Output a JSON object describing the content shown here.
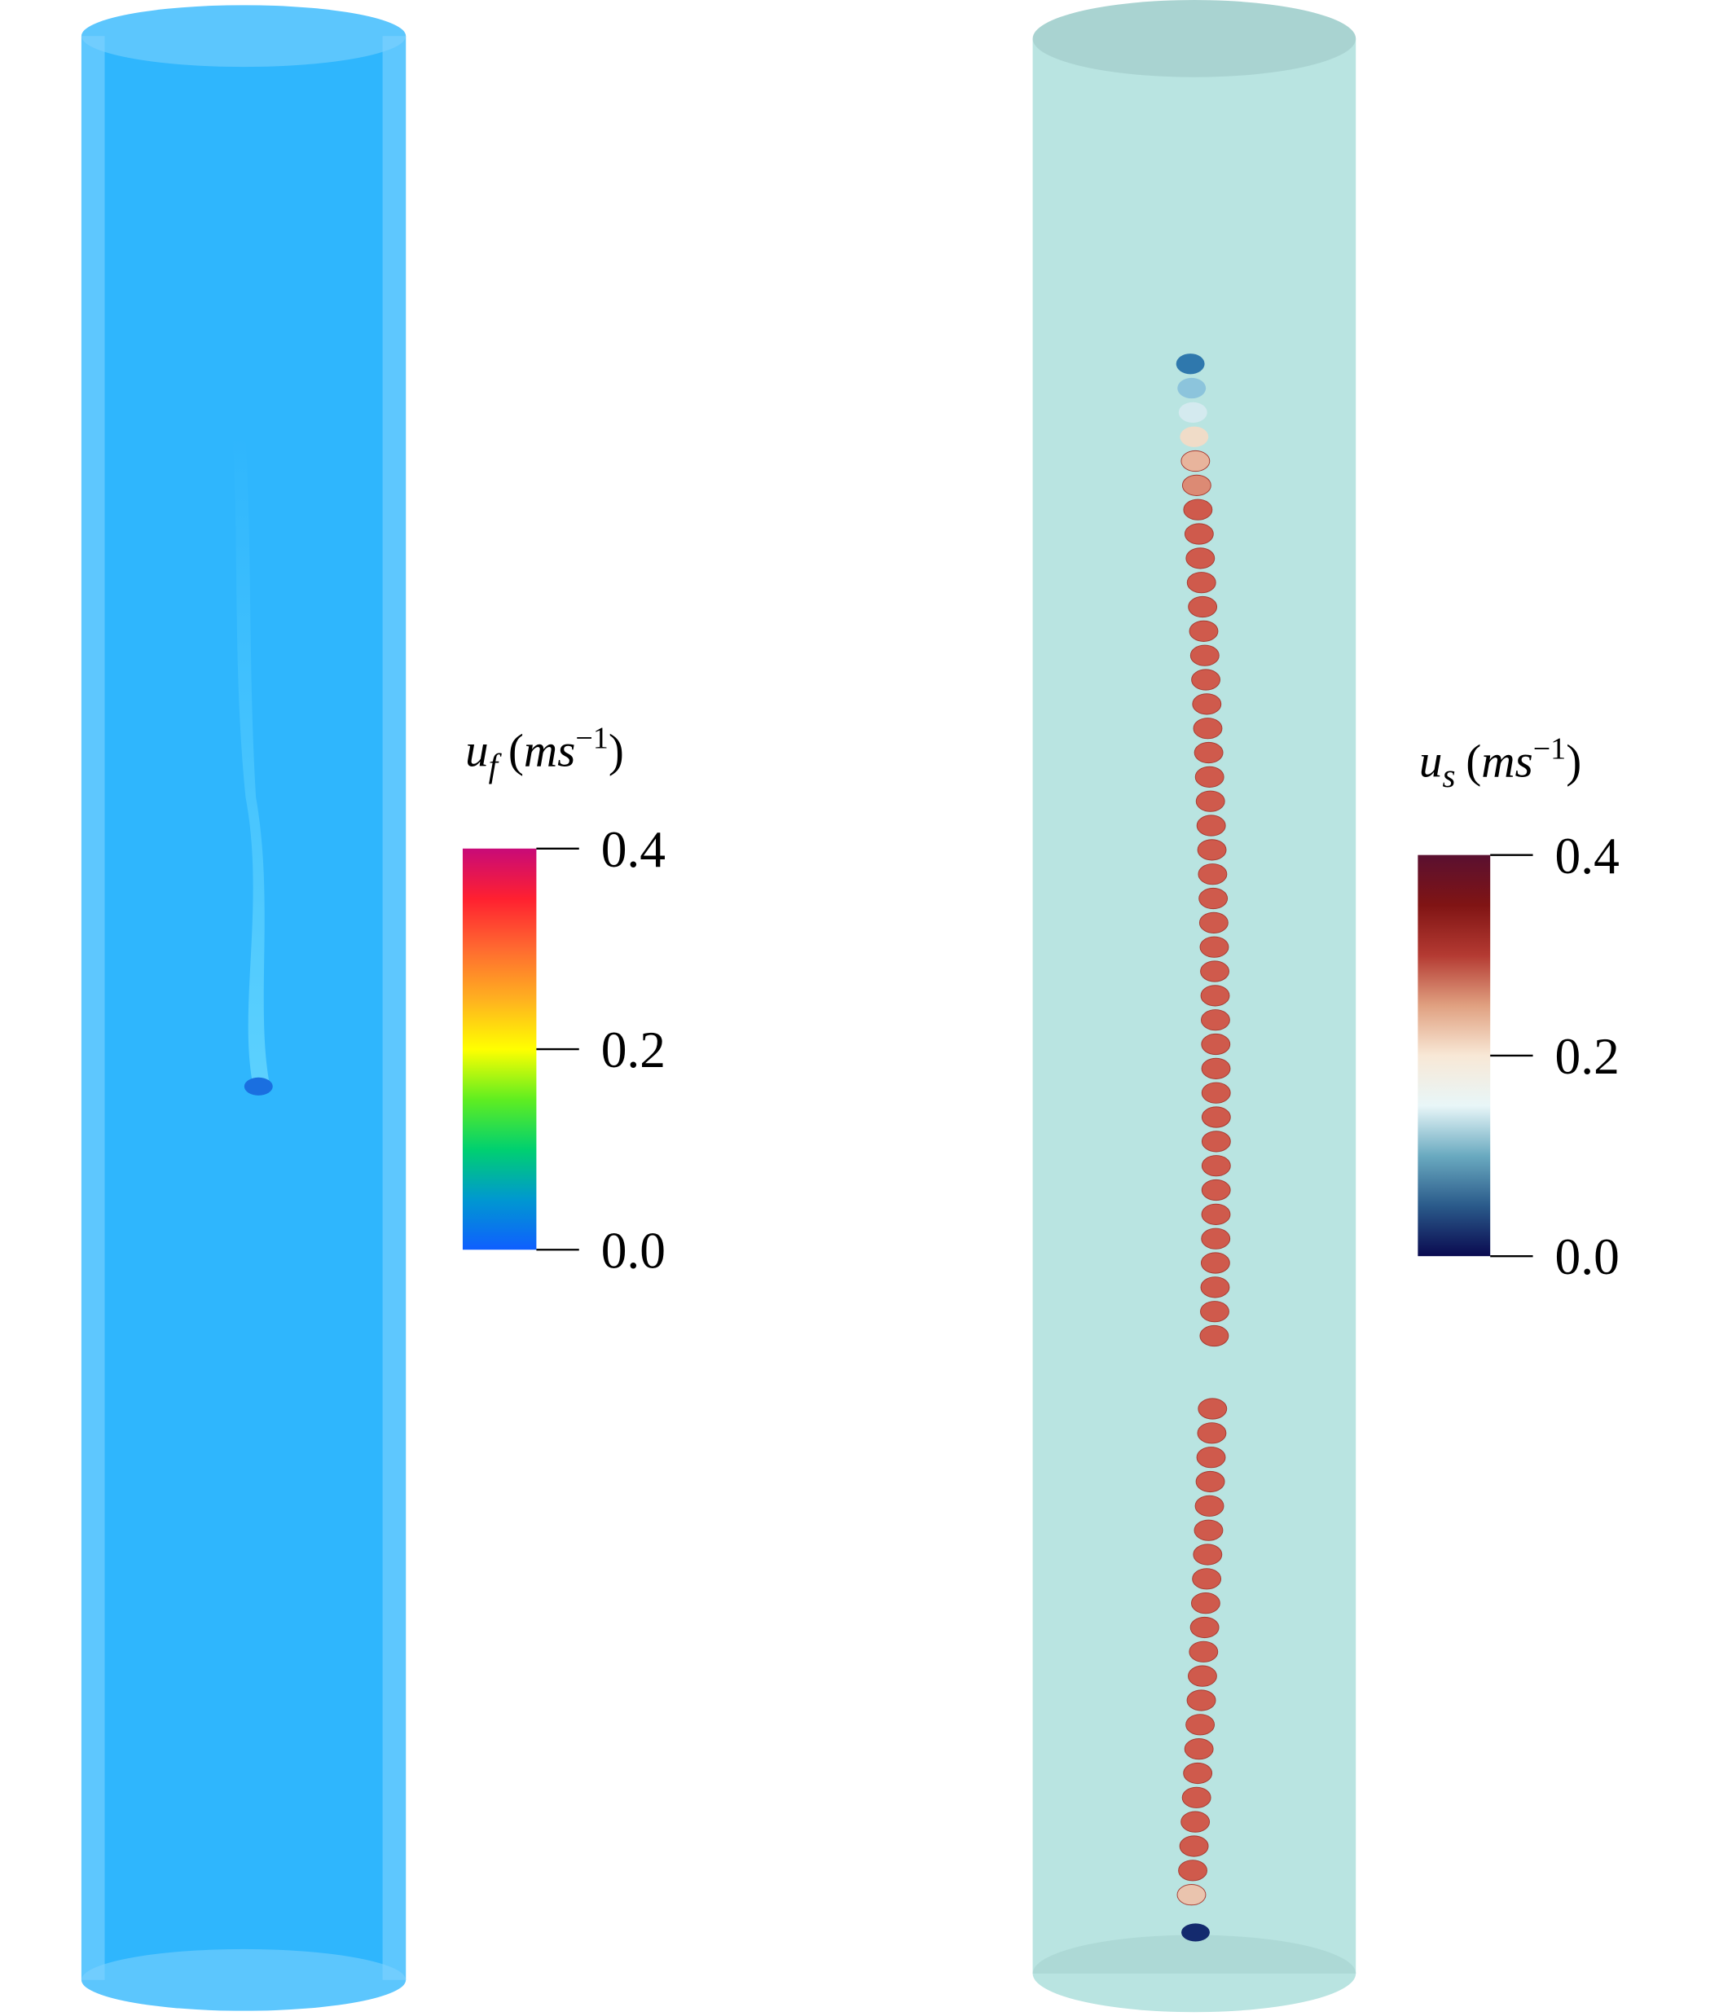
{
  "panels": [
    {
      "colorbar": {
        "label": {
          "symbol": "u",
          "subscript": "f",
          "open": "(",
          "unit": "ms",
          "exponent": "−1",
          "close": ")"
        },
        "lim": [
          0,
          0.4
        ],
        "ticks": [
          {
            "value": 0,
            "label": "0.0"
          },
          0.2,
          0.4
        ],
        "colormap": [
          "#0f5fff",
          "#0098d0",
          "#00d070",
          "#60ee20",
          "#ffff00",
          "#ffb020",
          "#ff6a30",
          "#ff2030",
          "#c80a78"
        ]
      }
    },
    {
      "colorbar": {
        "label": {
          "symbol": "u",
          "subscript": "s",
          "open": "(",
          "unit": "ms",
          "exponent": "−1",
          "close": ")"
        },
        "lim": [
          0,
          0.4
        ],
        "ticks": [
          {
            "value": 0,
            "label": "0.0"
          },
          0.2,
          0.4
        ],
        "colormap": [
          "#0a0a50",
          "#2a5a8a",
          "#6aaac0",
          "#e8f6f8",
          "#f8e8d6",
          "#e0a080",
          "#b43a32",
          "#801414",
          "#5a1030"
        ]
      }
    }
  ]
}
